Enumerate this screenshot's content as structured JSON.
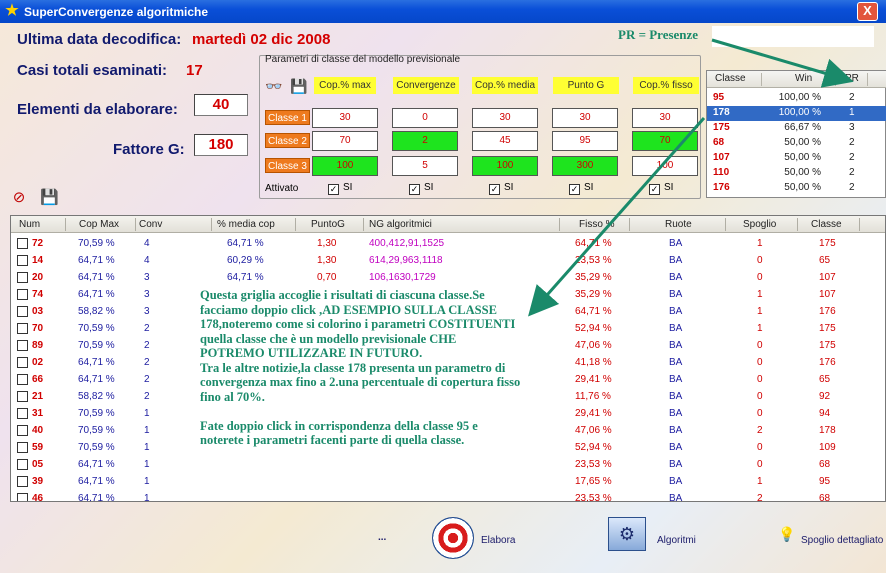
{
  "window": {
    "title": "SuperConvergenze algoritmiche",
    "close_label": "X"
  },
  "info": {
    "last_date_label": "Ultima data decodifica:",
    "last_date_value": "martedì 02 dic 2008",
    "total_cases_label": "Casi totali esaminati:",
    "total_cases_value": "17",
    "elements_label": "Elementi da elaborare:",
    "elements_value": "40",
    "factor_label": "Fattore G:",
    "factor_value": "180"
  },
  "pr_note": "PR = Presenze",
  "params": {
    "legend": "Parametri di classe del modello previsionale",
    "columns": [
      "Cop.% max",
      "Convergenze",
      "Cop.% media",
      "Punto G",
      "Cop.% fisso"
    ],
    "rows": [
      {
        "label": "Classe 1",
        "values": [
          "30",
          "0",
          "30",
          "30",
          "30"
        ],
        "green": [
          false,
          false,
          false,
          false,
          false
        ]
      },
      {
        "label": "Classe 2",
        "values": [
          "70",
          "2",
          "45",
          "95",
          "70"
        ],
        "green": [
          false,
          true,
          false,
          false,
          true
        ]
      },
      {
        "label": "Classe 3",
        "values": [
          "100",
          "5",
          "100",
          "300",
          "100"
        ],
        "green": [
          true,
          false,
          true,
          true,
          false
        ]
      }
    ],
    "activated_label": "Attivato",
    "check_label": "SI",
    "check_mark": "✓"
  },
  "class_panel": {
    "headers": [
      "Classe",
      "Win",
      "PR"
    ],
    "rows": [
      {
        "classe": "95",
        "win": "100,00 %",
        "pr": "2"
      },
      {
        "classe": "178",
        "win": "100,00 %",
        "pr": "1"
      },
      {
        "classe": "175",
        "win": "66,67 %",
        "pr": "3"
      },
      {
        "classe": "68",
        "win": "50,00 %",
        "pr": "2"
      },
      {
        "classe": "107",
        "win": "50,00 %",
        "pr": "2"
      },
      {
        "classe": "110",
        "win": "50,00 %",
        "pr": "2"
      },
      {
        "classe": "176",
        "win": "50,00 %",
        "pr": "2"
      }
    ],
    "selected_index": 1
  },
  "grid": {
    "headers": [
      "Num",
      "Cop Max",
      "Conv",
      "% media cop",
      "PuntoG",
      "NG algoritmici",
      "Fisso %",
      "Ruote",
      "Spoglio",
      "Classe"
    ],
    "rows": [
      {
        "num": "72",
        "cop": "70,59 %",
        "conv": "4",
        "media": "64,71 %",
        "punto": "1,30",
        "ng": "400,412,91,1525",
        "fisso": "64,71 %",
        "ruote": "BA",
        "spoglio": "1",
        "classe": "175"
      },
      {
        "num": "14",
        "cop": "64,71 %",
        "conv": "4",
        "media": "60,29 %",
        "punto": "1,30",
        "ng": "614,29,963,1118",
        "fisso": "23,53 %",
        "ruote": "BA",
        "spoglio": "0",
        "classe": "65"
      },
      {
        "num": "20",
        "cop": "64,71 %",
        "conv": "3",
        "media": "64,71 %",
        "punto": "0,70",
        "ng": "106,1630,1729",
        "fisso": "35,29 %",
        "ruote": "BA",
        "spoglio": "0",
        "classe": "107"
      },
      {
        "num": "74",
        "cop": "64,71 %",
        "conv": "3",
        "media": "",
        "punto": "",
        "ng": "",
        "fisso": "35,29 %",
        "ruote": "BA",
        "spoglio": "1",
        "classe": "107"
      },
      {
        "num": "03",
        "cop": "58,82 %",
        "conv": "3",
        "media": "",
        "punto": "",
        "ng": "",
        "fisso": "64,71 %",
        "ruote": "BA",
        "spoglio": "1",
        "classe": "176"
      },
      {
        "num": "70",
        "cop": "70,59 %",
        "conv": "2",
        "media": "",
        "punto": "",
        "ng": "",
        "fisso": "52,94 %",
        "ruote": "BA",
        "spoglio": "1",
        "classe": "175"
      },
      {
        "num": "89",
        "cop": "70,59 %",
        "conv": "2",
        "media": "",
        "punto": "",
        "ng": "",
        "fisso": "47,06 %",
        "ruote": "BA",
        "spoglio": "0",
        "classe": "175"
      },
      {
        "num": "02",
        "cop": "64,71 %",
        "conv": "2",
        "media": "",
        "punto": "",
        "ng": "",
        "fisso": "41,18 %",
        "ruote": "BA",
        "spoglio": "0",
        "classe": "176"
      },
      {
        "num": "66",
        "cop": "64,71 %",
        "conv": "2",
        "media": "",
        "punto": "",
        "ng": "",
        "fisso": "29,41 %",
        "ruote": "BA",
        "spoglio": "0",
        "classe": "65"
      },
      {
        "num": "21",
        "cop": "58,82 %",
        "conv": "2",
        "media": "",
        "punto": "",
        "ng": "",
        "fisso": "11,76 %",
        "ruote": "BA",
        "spoglio": "0",
        "classe": "92"
      },
      {
        "num": "31",
        "cop": "70,59 %",
        "conv": "1",
        "media": "",
        "punto": "",
        "ng": "",
        "fisso": "29,41 %",
        "ruote": "BA",
        "spoglio": "0",
        "classe": "94"
      },
      {
        "num": "40",
        "cop": "70,59 %",
        "conv": "1",
        "media": "",
        "punto": "",
        "ng": "",
        "fisso": "47,06 %",
        "ruote": "BA",
        "spoglio": "2",
        "classe": "178"
      },
      {
        "num": "59",
        "cop": "70,59 %",
        "conv": "1",
        "media": "",
        "punto": "",
        "ng": "",
        "fisso": "52,94 %",
        "ruote": "BA",
        "spoglio": "0",
        "classe": "109"
      },
      {
        "num": "05",
        "cop": "64,71 %",
        "conv": "1",
        "media": "",
        "punto": "",
        "ng": "",
        "fisso": "23,53 %",
        "ruote": "BA",
        "spoglio": "0",
        "classe": "68"
      },
      {
        "num": "39",
        "cop": "64,71 %",
        "conv": "1",
        "media": "",
        "punto": "",
        "ng": "",
        "fisso": "17,65 %",
        "ruote": "BA",
        "spoglio": "1",
        "classe": "95"
      },
      {
        "num": "46",
        "cop": "64,71 %",
        "conv": "1",
        "media": "",
        "punto": "",
        "ng": "",
        "fisso": "23,53 %",
        "ruote": "BA",
        "spoglio": "2",
        "classe": "68"
      }
    ]
  },
  "annotation": {
    "para1": "Questa griglia accoglie i risultati di ciascuna classe.Se facciamo doppio click ,AD ESEMPIO SULLA CLASSE 178,noteremo come si colorino i parametri COSTITUENTI  quella classe che è un modello previsionale CHE POTREMO UTILIZZARE IN FUTURO.",
    "para2": "Tra le altre notizie,la classe 178 presenta un parametro di convergenza max fino a 2.una percentuale di copertura fisso fino al 70%.",
    "para3": "Fate doppio click in corrispondenza della classe 95 e noterete i parametri facenti parte di quella classe."
  },
  "bottom": {
    "dots": "...",
    "elabora": "Elabora",
    "algoritmi": "Algoritmi",
    "spoglio": "Spoglio dettagliato"
  },
  "colors": {
    "titlebar": "#0a4fd8",
    "accent_red": "#d40000",
    "label_blue": "#111a6e",
    "note_green": "#1a8a6a",
    "cell_green": "#1ee41e",
    "tab_orange": "#ee7a1e",
    "header_yellow": "#ffff33"
  },
  "icons": [
    "star-icon",
    "close-icon",
    "binoculars-icon",
    "save-icon",
    "stop-icon",
    "target-icon",
    "algorithms-icon",
    "lightbulb-icon"
  ]
}
